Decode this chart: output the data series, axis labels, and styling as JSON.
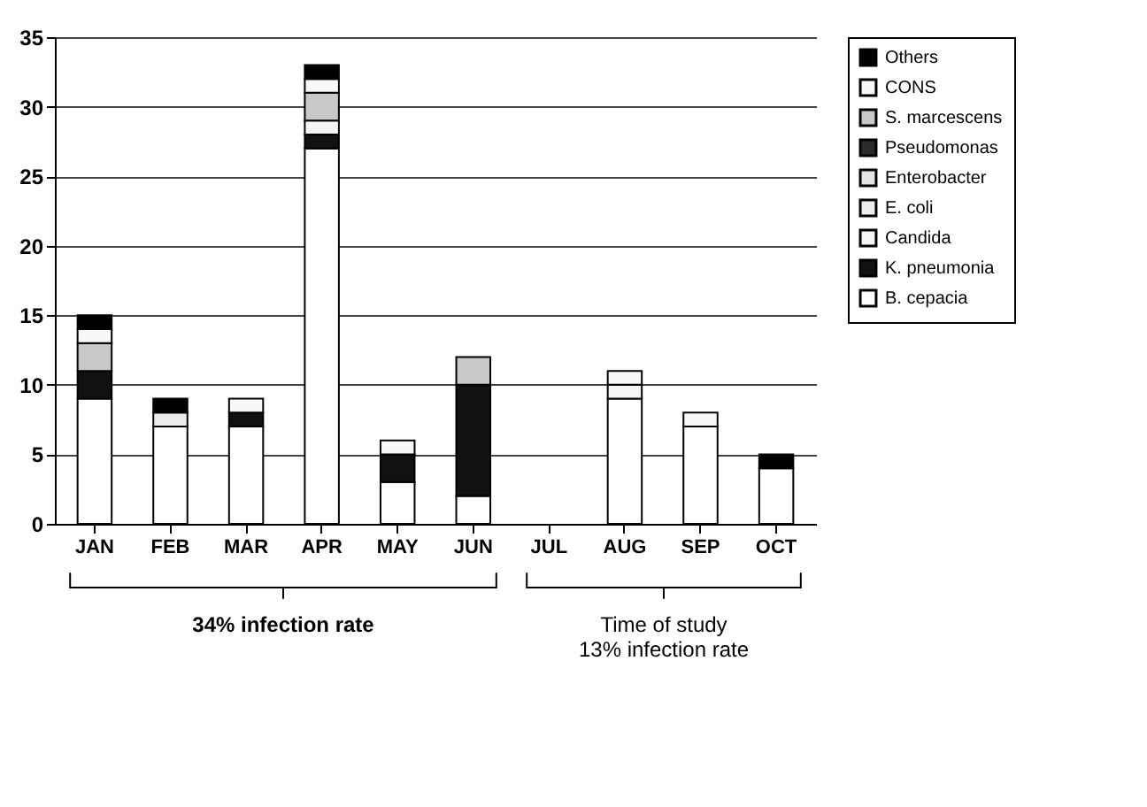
{
  "chart_data": {
    "type": "bar",
    "stacked": true,
    "categories": [
      "JAN",
      "FEB",
      "MAR",
      "APR",
      "MAY",
      "JUN",
      "JUL",
      "AUG",
      "SEP",
      "OCT"
    ],
    "series": [
      {
        "name": "B. cepacia",
        "color": "#ffffff",
        "values": [
          9,
          7,
          7,
          27,
          3,
          2,
          0,
          9,
          7,
          4
        ]
      },
      {
        "name": "K. pneumonia",
        "color": "#111111",
        "values": [
          2,
          0,
          1,
          1,
          2,
          8,
          0,
          0,
          0,
          0
        ]
      },
      {
        "name": "Candida",
        "color": "#f4f4f4",
        "values": [
          0,
          0,
          0,
          1,
          0,
          0,
          0,
          1,
          0,
          0
        ]
      },
      {
        "name": "E. coli",
        "color": "#ececec",
        "values": [
          0,
          1,
          0,
          0,
          0,
          0,
          0,
          0,
          0,
          0
        ]
      },
      {
        "name": "Enterobacter",
        "color": "#e4e4e4",
        "values": [
          0,
          0,
          0,
          0,
          0,
          0,
          0,
          0,
          0,
          0
        ]
      },
      {
        "name": "Pseudomonas",
        "color": "#2a2a2a",
        "values": [
          0,
          0,
          0,
          0,
          0,
          0,
          0,
          0,
          0,
          0
        ]
      },
      {
        "name": "S. marcescens",
        "color": "#c8c8c8",
        "values": [
          2,
          0,
          0,
          2,
          0,
          2,
          0,
          0,
          0,
          0
        ]
      },
      {
        "name": "CONS",
        "color": "#f8f8f8",
        "values": [
          1,
          0,
          1,
          1,
          1,
          0,
          0,
          1,
          1,
          0
        ]
      },
      {
        "name": "Others",
        "color": "#000000",
        "values": [
          1,
          1,
          0,
          1,
          0,
          0,
          0,
          0,
          0,
          1
        ]
      }
    ],
    "ylim": [
      0,
      35
    ],
    "yticks": [
      0,
      5,
      10,
      15,
      20,
      25,
      30,
      35
    ],
    "grid": "y",
    "legend": "right",
    "annotations": [
      "34% infection rate",
      "Time of study\n13% infection rate"
    ]
  }
}
